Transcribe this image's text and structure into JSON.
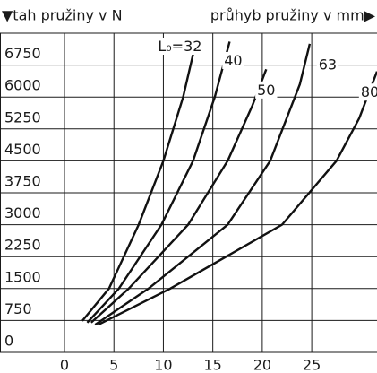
{
  "chart_data": {
    "type": "line",
    "y_label": "▼tah pružiny v N",
    "x_label": "průhyb pružiny v mm▶",
    "xlim": [
      0,
      31.6
    ],
    "xticks": [
      0,
      5,
      10,
      15,
      20,
      25
    ],
    "ylim": [
      0,
      7500
    ],
    "yticks": [
      0,
      750,
      1500,
      2250,
      3000,
      3750,
      4500,
      5250,
      6000,
      6750
    ],
    "grid": true,
    "series": [
      {
        "name": "L₀=32",
        "color": "#111111",
        "x": [
          1.8,
          4.5,
          7.5,
          10,
          12,
          13.3
        ],
        "values": [
          740,
          1500,
          3000,
          4500,
          6000,
          7300
        ]
      },
      {
        "name": "40",
        "color": "#111111",
        "x": [
          2.3,
          5.5,
          9.8,
          13,
          15.2,
          16.7
        ],
        "values": [
          700,
          1500,
          3000,
          4500,
          6000,
          7300
        ]
      },
      {
        "name": "50",
        "color": "#111111",
        "x": [
          2.7,
          6.5,
          12.5,
          16.5,
          19,
          20.4
        ],
        "values": [
          700,
          1500,
          3000,
          4500,
          5800,
          6650
        ]
      },
      {
        "name": "63",
        "color": "#111111",
        "x": [
          3.1,
          8.5,
          16.5,
          20.8,
          23.8,
          24.8
        ],
        "values": [
          650,
          1500,
          3000,
          4500,
          6300,
          7250
        ]
      },
      {
        "name": "80",
        "color": "#111111",
        "x": [
          3.4,
          10.7,
          22,
          27.5,
          29.8,
          31.6
        ],
        "values": [
          650,
          1500,
          3000,
          4500,
          5500,
          6600
        ]
      }
    ]
  }
}
